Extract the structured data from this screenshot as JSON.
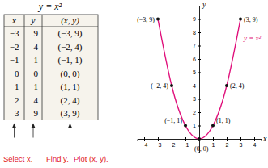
{
  "table": {
    "title": "y = x²",
    "columns": [
      "x",
      "y",
      "(x, y)"
    ],
    "rows": [
      [
        -3,
        9,
        "(−3, 9)"
      ],
      [
        -2,
        4,
        "(−2, 4)"
      ],
      [
        -1,
        1,
        "(−1, 1)"
      ],
      [
        0,
        0,
        "(0, 0)"
      ],
      [
        1,
        1,
        "(1, 1)"
      ],
      [
        2,
        4,
        "(2, 4)"
      ],
      [
        3,
        9,
        "(3, 9)"
      ]
    ],
    "captions": [
      "Select x.",
      "Find y.",
      "Plot (x, y)."
    ]
  },
  "chart_data": {
    "type": "line",
    "x_label": "x",
    "y_label": "y",
    "x": [
      -3,
      -2,
      -1,
      0,
      1,
      2,
      3
    ],
    "series": [
      {
        "name": "y = x²",
        "color": "#e0127c",
        "marker": "circle",
        "values": [
          9,
          4,
          1,
          0,
          1,
          4,
          9
        ],
        "value_labels": [
          "(−3, 9)",
          "(−2, 4)",
          "(−1, 1)",
          "(0, 0)",
          "(1, 1)",
          "(2, 4)",
          "(3, 9)"
        ]
      }
    ],
    "data_labels": true,
    "grid": false,
    "xlim": [
      -4.5,
      4.5
    ],
    "xticks": [
      -4,
      -3,
      -2,
      -1,
      1,
      2,
      3,
      4
    ],
    "ylim": [
      -1,
      10
    ],
    "yticks": [
      1,
      2,
      3,
      4,
      5,
      6,
      7,
      8,
      9
    ]
  }
}
